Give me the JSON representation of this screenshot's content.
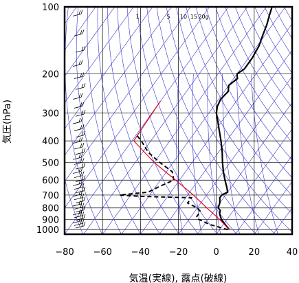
{
  "chart_data": {
    "type": "line",
    "diagram": "skew-T log-P",
    "xlabel": "気温(実線), 露点(破線)",
    "ylabel": "気圧(hPa)",
    "x_ticks": [
      -80,
      -60,
      -40,
      -20,
      0,
      20,
      40
    ],
    "y_ticks": [
      100,
      200,
      300,
      400,
      500,
      600,
      700,
      800,
      900,
      1000
    ],
    "y_scale": "log",
    "xlim": [
      -80,
      40
    ],
    "ylim": [
      1050,
      100
    ],
    "mixing_ratio_labels": [
      "1",
      "5",
      "10",
      "15",
      "20g"
    ],
    "series": [
      {
        "style": "solid",
        "color": "#000000",
        "points": [
          {
            "p": 100,
            "t": -57
          },
          {
            "p": 110,
            "t": -55
          },
          {
            "p": 120,
            "t": -53
          },
          {
            "p": 135,
            "t": -51
          },
          {
            "p": 150,
            "t": -49
          },
          {
            "p": 170,
            "t": -48
          },
          {
            "p": 190,
            "t": -48
          },
          {
            "p": 200,
            "t": -50
          },
          {
            "p": 210,
            "t": -48
          },
          {
            "p": 225,
            "t": -50
          },
          {
            "p": 240,
            "t": -48
          },
          {
            "p": 260,
            "t": -49
          },
          {
            "p": 280,
            "t": -48
          },
          {
            "p": 300,
            "t": -46
          },
          {
            "p": 320,
            "t": -43
          },
          {
            "p": 350,
            "t": -39
          },
          {
            "p": 400,
            "t": -33
          },
          {
            "p": 450,
            "t": -28
          },
          {
            "p": 500,
            "t": -24
          },
          {
            "p": 550,
            "t": -20
          },
          {
            "p": 600,
            "t": -16
          },
          {
            "p": 650,
            "t": -12
          },
          {
            "p": 680,
            "t": -10
          },
          {
            "p": 700,
            "t": -12
          },
          {
            "p": 720,
            "t": -12
          },
          {
            "p": 760,
            "t": -10
          },
          {
            "p": 800,
            "t": -9
          },
          {
            "p": 820,
            "t": -7
          },
          {
            "p": 850,
            "t": -6
          },
          {
            "p": 900,
            "t": -3
          },
          {
            "p": 950,
            "t": 1
          },
          {
            "p": 1000,
            "t": 5
          }
        ]
      },
      {
        "style": "dashed",
        "color": "#000000",
        "points": [
          {
            "p": 380,
            "t": -79
          },
          {
            "p": 400,
            "t": -75
          },
          {
            "p": 450,
            "t": -67
          },
          {
            "p": 500,
            "t": -57
          },
          {
            "p": 550,
            "t": -47
          },
          {
            "p": 600,
            "t": -43
          },
          {
            "p": 640,
            "t": -48
          },
          {
            "p": 680,
            "t": -52
          },
          {
            "p": 700,
            "t": -66
          },
          {
            "p": 710,
            "t": -54
          },
          {
            "p": 720,
            "t": -27
          },
          {
            "p": 760,
            "t": -27
          },
          {
            "p": 800,
            "t": -20
          },
          {
            "p": 830,
            "t": -17
          },
          {
            "p": 880,
            "t": -17
          },
          {
            "p": 900,
            "t": -15
          },
          {
            "p": 950,
            "t": -7
          },
          {
            "p": 1000,
            "t": 4
          },
          {
            "p": 1010,
            "t": 5
          }
        ]
      },
      {
        "style": "solid",
        "color": "#e0001a",
        "points": [
          {
            "p": 1000,
            "t": 5
          },
          {
            "p": 900,
            "t": -4
          },
          {
            "p": 800,
            "t": -15
          },
          {
            "p": 700,
            "t": -27
          },
          {
            "p": 600,
            "t": -42
          },
          {
            "p": 500,
            "t": -60
          },
          {
            "p": 400,
            "t": -79
          },
          {
            "p": 265,
            "t": -80
          }
        ]
      }
    ],
    "wind_barbs_present": true,
    "colors": {
      "isopleths": "#3333cc",
      "grid": "#000000",
      "parcel": "#e0001a",
      "profiles": "#000000"
    }
  }
}
